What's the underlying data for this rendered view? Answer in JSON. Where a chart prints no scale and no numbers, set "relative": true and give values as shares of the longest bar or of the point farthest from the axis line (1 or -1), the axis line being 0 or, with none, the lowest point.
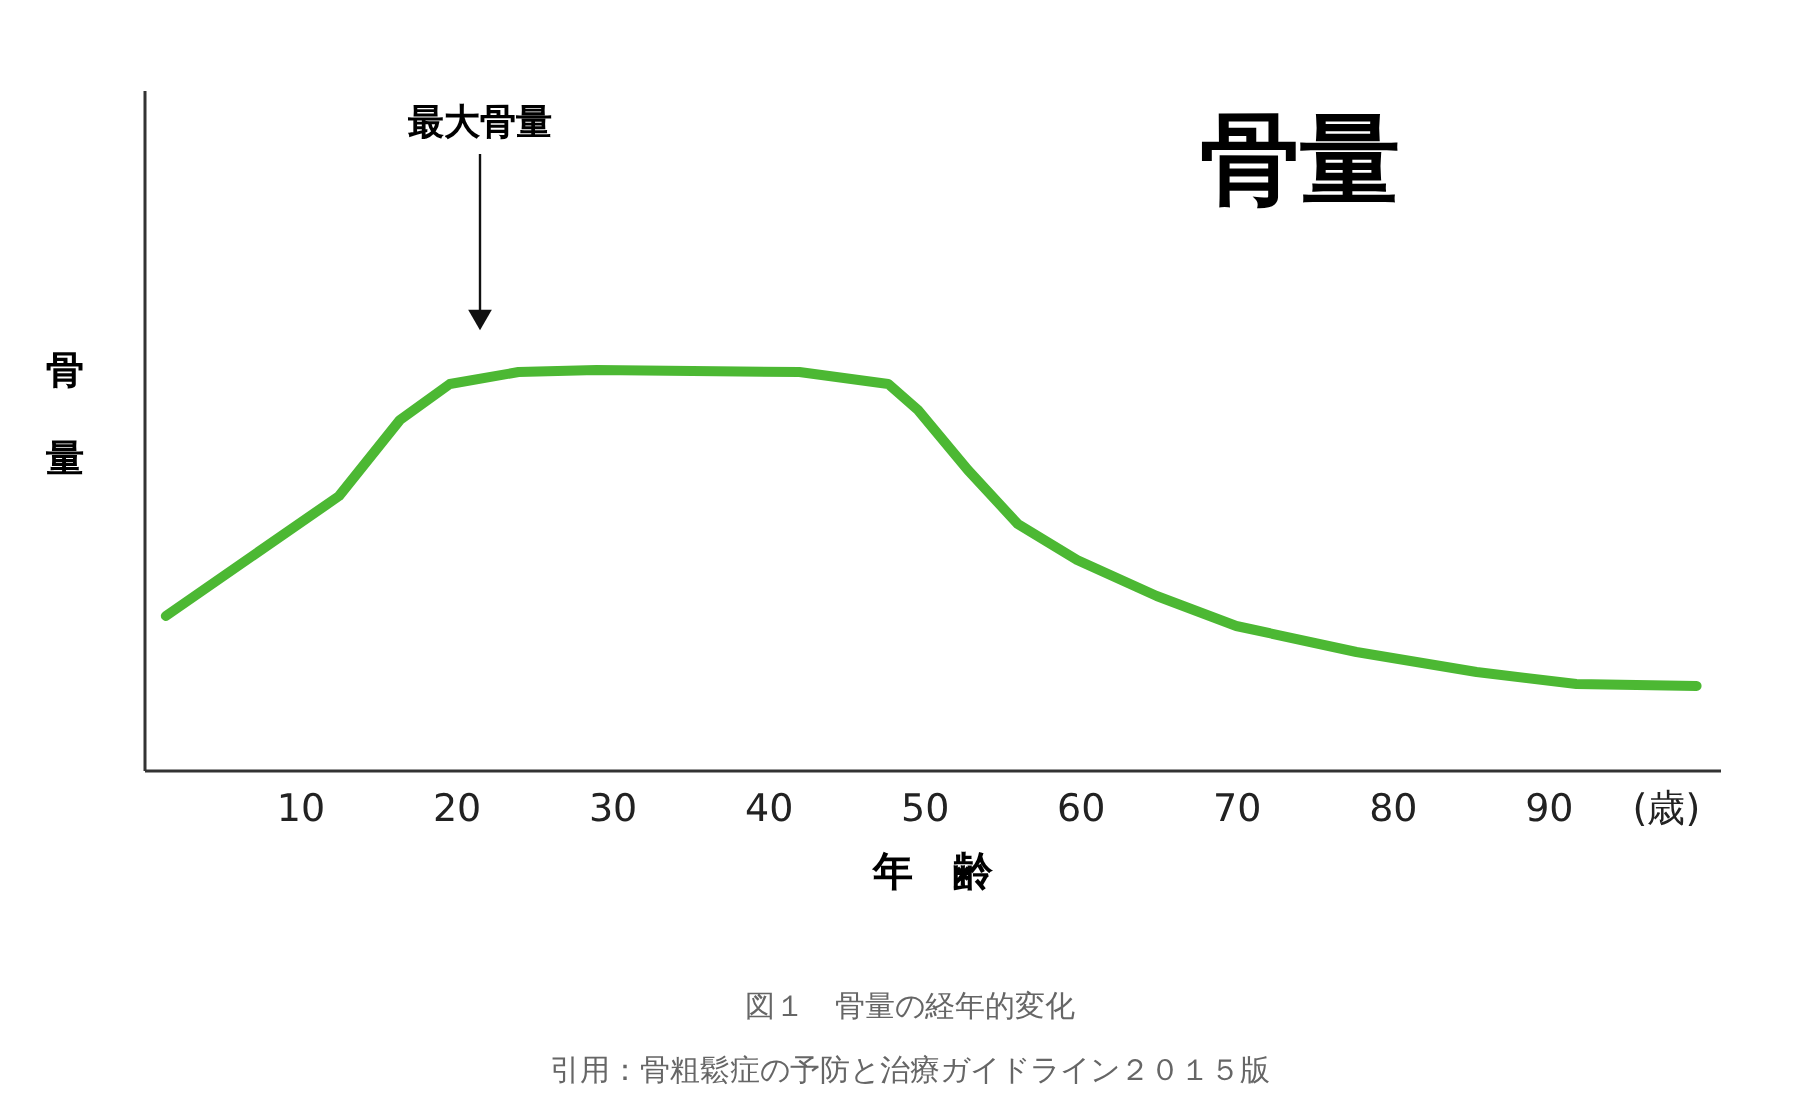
{
  "chart_data": {
    "type": "line",
    "title": "骨量",
    "xlabel": "年　齢",
    "ylabel": "骨量",
    "relative": true,
    "x": [
      1.4,
      12.5,
      16.4,
      19.6,
      24,
      29,
      42,
      47.7,
      49.6,
      52.8,
      56,
      59.8,
      64.9,
      70,
      77.7,
      85.4,
      91.8,
      99.5
    ],
    "series": [
      {
        "color": "#4cb833",
        "values": [
          0.385,
          0.685,
          0.875,
          0.965,
          0.995,
          1.0,
          0.995,
          0.965,
          0.9,
          0.75,
          0.615,
          0.525,
          0.435,
          0.36,
          0.295,
          0.245,
          0.215,
          0.21
        ]
      }
    ],
    "xlim": [
      0,
      101
    ],
    "xticks": [
      10,
      20,
      30,
      40,
      50,
      60,
      70,
      80,
      90,
      {
        "value": 97.5,
        "label": "(歳)"
      }
    ],
    "grid": false,
    "marker": "none",
    "line_style": "solid",
    "annotations": [
      "最大骨量",
      "図１　骨量の経年的変化",
      "引用：骨粗鬆症の予防と治療ガイドライン２０１５版"
    ]
  }
}
